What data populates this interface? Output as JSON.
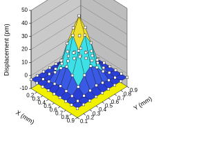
{
  "chart_data": {
    "type": "surface",
    "zlabel": "Displacement (pm)",
    "xlabel": "X (mm)",
    "ylabel": "Y (mm)",
    "x": [
      0.1,
      0.2,
      0.3,
      0.4,
      0.5,
      0.6,
      0.7,
      0.8,
      0.9
    ],
    "y": [
      0.1,
      0.2,
      0.3,
      0.4,
      0.5,
      0.6,
      0.7,
      0.8,
      0.9
    ],
    "z": [
      [
        -3,
        -3,
        -3,
        -3,
        -3,
        -3,
        -3,
        -3,
        -3
      ],
      [
        -3,
        -3,
        -2,
        -1,
        0,
        -1,
        -2,
        -3,
        -3
      ],
      [
        -3,
        -2,
        2,
        8,
        12,
        8,
        2,
        -2,
        -3
      ],
      [
        -3,
        -1,
        8,
        24,
        33,
        24,
        8,
        -1,
        -3
      ],
      [
        -3,
        0,
        12,
        33,
        45,
        33,
        12,
        0,
        -3
      ],
      [
        -3,
        -1,
        8,
        24,
        33,
        24,
        8,
        -1,
        -3
      ],
      [
        -3,
        -2,
        2,
        8,
        12,
        8,
        2,
        -2,
        -3
      ],
      [
        -3,
        -3,
        -2,
        -1,
        0,
        -1,
        -2,
        -3,
        -3
      ],
      [
        -3,
        -3,
        -3,
        -3,
        -3,
        -3,
        -3,
        -3,
        -3
      ]
    ],
    "xlim": [
      0.1,
      0.9
    ],
    "ylim": [
      0.1,
      0.9
    ],
    "zlim": [
      -10,
      50
    ],
    "xticks": [
      0.2,
      0.3,
      0.4,
      0.5,
      0.6,
      0.7,
      0.8,
      0.9
    ],
    "yticks": [
      0.1,
      0.2,
      0.3,
      0.4,
      0.5,
      0.6,
      0.7,
      0.8,
      0.9
    ],
    "zticks": [
      -10,
      0,
      10,
      20,
      30,
      40,
      50
    ],
    "colormap": [
      "#2a3fd6",
      "#3a5ae6",
      "#3ee0e8",
      "#a6f0a0",
      "#f0e030",
      "#f08a20",
      "#e01818"
    ],
    "grid": true
  }
}
